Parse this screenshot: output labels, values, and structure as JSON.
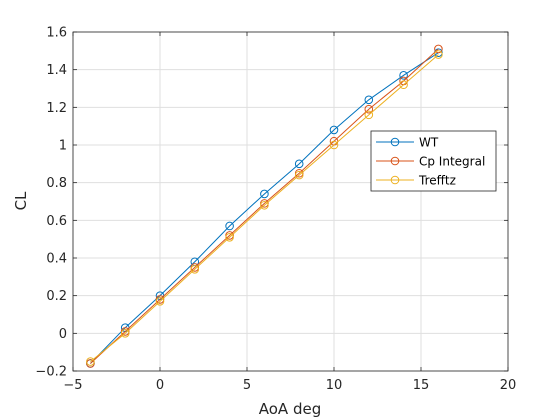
{
  "chart_data": {
    "type": "line",
    "title": "",
    "xlabel": "AoA deg",
    "ylabel": "CL",
    "xlim": [
      -5,
      20
    ],
    "ylim": [
      -0.2,
      1.6
    ],
    "xticks": [
      -5,
      0,
      5,
      10,
      15,
      20
    ],
    "yticks": [
      -0.2,
      0,
      0.2,
      0.4,
      0.6,
      0.8,
      1,
      1.2,
      1.4,
      1.6
    ],
    "xtick_labels": [
      "−5",
      "0",
      "5",
      "10",
      "15",
      "20"
    ],
    "ytick_labels": [
      "−0.2",
      "0",
      "0.2",
      "0.4",
      "0.6",
      "0.8",
      "1",
      "1.2",
      "1.4",
      "1.6"
    ],
    "grid": true,
    "legend_position": "right",
    "marker": "circle",
    "x": [
      -4,
      -2,
      0,
      2,
      4,
      6,
      8,
      10,
      12,
      14,
      16
    ],
    "series": [
      {
        "name": "WT",
        "color": "#0072BD",
        "values": [
          -0.16,
          0.03,
          0.2,
          0.38,
          0.57,
          0.74,
          0.9,
          1.08,
          1.24,
          1.37,
          1.49
        ]
      },
      {
        "name": "Cp Integral",
        "color": "#D95319",
        "values": [
          -0.16,
          0.01,
          0.18,
          0.35,
          0.52,
          0.69,
          0.85,
          1.02,
          1.19,
          1.34,
          1.51
        ]
      },
      {
        "name": "Trefftz",
        "color": "#EDB120",
        "values": [
          -0.15,
          0.0,
          0.17,
          0.34,
          0.51,
          0.68,
          0.84,
          1.0,
          1.16,
          1.32,
          1.48
        ]
      }
    ]
  }
}
